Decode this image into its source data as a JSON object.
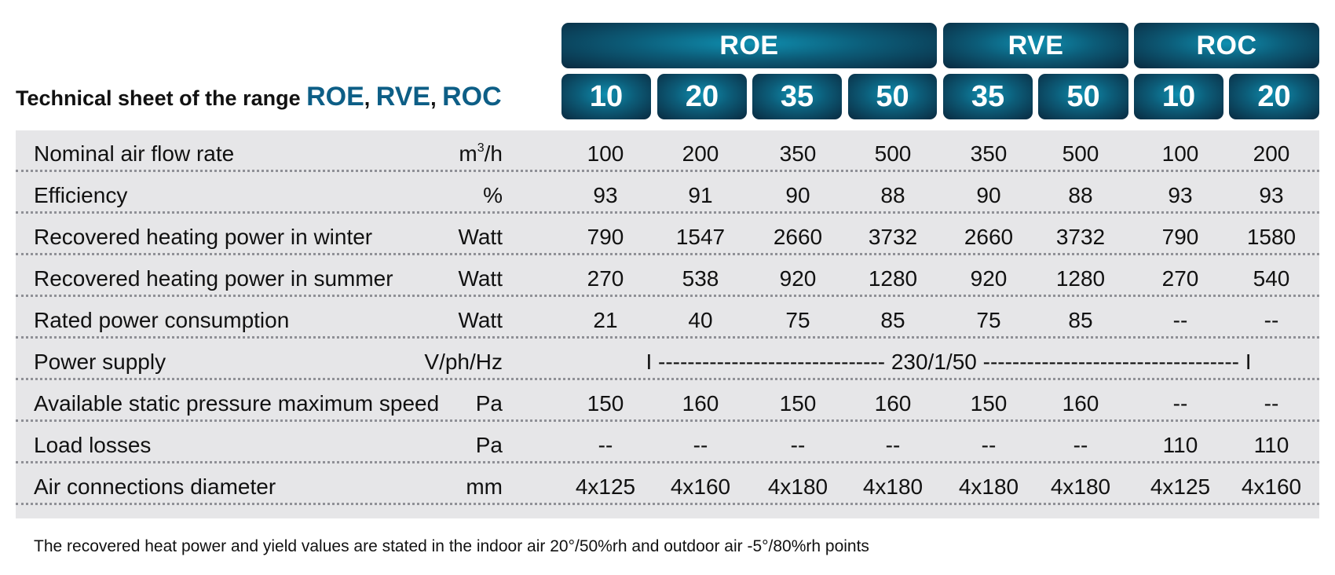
{
  "title": {
    "prefix": "Technical sheet of the range ",
    "brand1": "ROE",
    "sep1": ", ",
    "brand2": "RVE",
    "sep2": ", ",
    "brand3": "ROC"
  },
  "groups": [
    "ROE",
    "RVE",
    "ROC"
  ],
  "models": [
    "10",
    "20",
    "35",
    "50",
    "35",
    "50",
    "10",
    "20"
  ],
  "rows": [
    {
      "label": "Nominal air flow rate",
      "unit_base": "m",
      "unit_sup": "3",
      "unit_rest": "/h",
      "values": [
        "100",
        "200",
        "350",
        "500",
        "350",
        "500",
        "100",
        "200"
      ]
    },
    {
      "label": "Efficiency",
      "unit": "%",
      "values": [
        "93",
        "91",
        "90",
        "88",
        "90",
        "88",
        "93",
        "93"
      ]
    },
    {
      "label": "Recovered heating power in winter",
      "unit": "Watt",
      "values": [
        "790",
        "1547",
        "2660",
        "3732",
        "2660",
        "3732",
        "790",
        "1580"
      ]
    },
    {
      "label": "Recovered heating power in summer",
      "unit": "Watt",
      "values": [
        "270",
        "538",
        "920",
        "1280",
        "920",
        "1280",
        "270",
        "540"
      ]
    },
    {
      "label": "Rated power consumption",
      "unit": "Watt",
      "values": [
        "21",
        "40",
        "75",
        "85",
        "75",
        "85",
        "--",
        "--"
      ]
    },
    {
      "label": "Power supply",
      "unit": "V/ph/Hz",
      "span": "I -------------------------------  230/1/50  ----------------------------------- I"
    },
    {
      "label": "Available static pressure maximum speed",
      "unit": "Pa",
      "values": [
        "150",
        "160",
        "150",
        "160",
        "150",
        "160",
        "--",
        "--"
      ]
    },
    {
      "label": "Load losses",
      "unit": "Pa",
      "values": [
        "--",
        "--",
        "--",
        "--",
        "--",
        "--",
        "110",
        "110"
      ]
    },
    {
      "label": "Air connections diameter",
      "unit": "mm",
      "values": [
        "4x125",
        "4x160",
        "4x180",
        "4x180",
        "4x180",
        "4x180",
        "4x125",
        "4x160"
      ]
    }
  ],
  "footnote": "The recovered heat power and yield values are stated in the indoor air 20°/50%rh and outdoor air -5°/80%rh points"
}
